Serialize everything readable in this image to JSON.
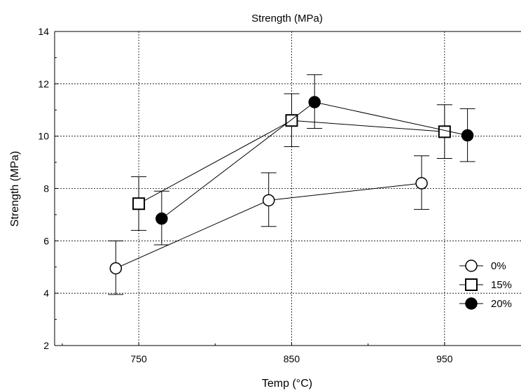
{
  "chart_data": {
    "type": "scatter",
    "title": "Strength (MPa)",
    "xlabel": "Temp (°C)",
    "ylabel": "Strength (MPa)",
    "xlim": [
      695,
      1000
    ],
    "ylim": [
      2,
      14
    ],
    "xticks": [
      750,
      850,
      950
    ],
    "yticks": [
      2,
      4,
      6,
      8,
      10,
      12,
      14
    ],
    "grid": true,
    "legend_position": "right",
    "series": [
      {
        "name": "0%",
        "marker": "circle-open",
        "color": "#ffffff",
        "points": [
          {
            "x": 735,
            "y": 4.95,
            "low": 3.95,
            "high": 6.0
          },
          {
            "x": 835,
            "y": 7.55,
            "low": 6.55,
            "high": 8.6
          },
          {
            "x": 935,
            "y": 8.2,
            "low": 7.2,
            "high": 9.25
          }
        ]
      },
      {
        "name": "15%",
        "marker": "square-open",
        "color": "#ffffff",
        "points": [
          {
            "x": 750,
            "y": 7.42,
            "low": 6.4,
            "high": 8.45
          },
          {
            "x": 850,
            "y": 10.6,
            "low": 9.6,
            "high": 11.62
          },
          {
            "x": 950,
            "y": 10.17,
            "low": 9.15,
            "high": 11.2
          }
        ]
      },
      {
        "name": "20%",
        "marker": "circle-filled",
        "color": "#000000",
        "points": [
          {
            "x": 765,
            "y": 6.85,
            "low": 5.85,
            "high": 7.9
          },
          {
            "x": 865,
            "y": 11.3,
            "low": 10.3,
            "high": 12.35
          },
          {
            "x": 965,
            "y": 10.03,
            "low": 9.03,
            "high": 11.05
          }
        ]
      }
    ]
  }
}
